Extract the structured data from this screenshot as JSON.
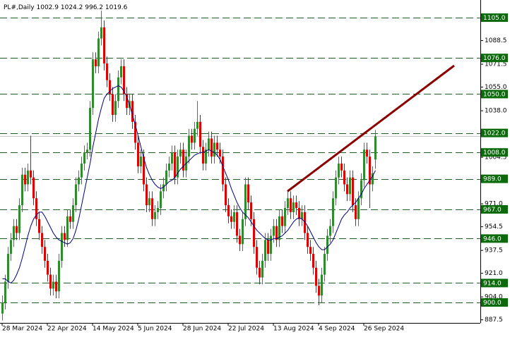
{
  "chart_data": {
    "type": "candlestick",
    "title": "PL#,Daily",
    "categories": [
      "28 Mar 2024",
      null,
      null,
      null,
      null,
      null,
      null,
      null,
      null,
      null,
      null,
      null,
      null,
      null,
      null,
      null,
      "22 Apr 2024",
      null,
      null,
      null,
      null,
      null,
      null,
      null,
      null,
      null,
      null,
      null,
      null,
      null,
      null,
      null,
      "14 May 2024",
      null,
      null,
      null,
      null,
      null,
      null,
      null,
      null,
      null,
      null,
      null,
      null,
      null,
      null,
      null,
      "5 Jun 2024",
      null,
      null,
      null,
      null,
      null,
      null,
      null,
      null,
      null,
      null,
      null,
      null,
      null,
      null,
      null,
      "28 Jun 2024",
      null,
      null,
      null,
      null,
      null,
      null,
      null,
      null,
      null,
      null,
      null,
      null,
      null,
      null,
      null,
      "22 Jul 2024",
      null,
      null,
      null,
      null,
      null,
      null,
      null,
      null,
      null,
      null,
      null,
      null,
      null,
      null,
      null,
      "13 Aug 2024",
      null,
      null,
      null,
      null,
      null,
      null,
      null,
      null,
      null,
      null,
      null,
      null,
      null,
      null,
      null,
      "4 Sep 2024",
      null,
      null,
      null,
      null,
      null,
      null,
      null,
      null,
      null,
      null,
      null,
      null,
      null,
      null,
      null,
      "26 Sep 2024",
      null,
      null,
      null,
      null
    ],
    "open": [
      892,
      900,
      915,
      935,
      945,
      955,
      950,
      970,
      992,
      985,
      995,
      990,
      975,
      960,
      950,
      940,
      930,
      920,
      910,
      915,
      908,
      930,
      950,
      945,
      962,
      958,
      970,
      985,
      990,
      1000,
      1008,
      1010,
      1040,
      1075,
      1070,
      1090,
      1098,
      1072,
      1060,
      1050,
      1035,
      1045,
      1062,
      1070,
      1050,
      1040,
      1045,
      1030,
      1015,
      998,
      1005,
      985,
      970,
      975,
      960,
      965,
      968,
      980,
      985,
      995,
      1000,
      1008,
      990,
      1005,
      1010,
      995,
      1005,
      1020,
      1015,
      1025,
      1030,
      1012,
      1000,
      1010,
      1018,
      1005,
      1015,
      1010,
      1005,
      985,
      970,
      962,
      958,
      965,
      948,
      942,
      960,
      985,
      972,
      960,
      940,
      925,
      918,
      930,
      945,
      935,
      948,
      955,
      945,
      962,
      955,
      968,
      975,
      965,
      972,
      968,
      960,
      965,
      950,
      940,
      935,
      925,
      912,
      905,
      920,
      935,
      948,
      955,
      975,
      990,
      1000,
      995,
      985,
      978,
      990,
      970,
      960,
      975,
      988,
      1010,
      1005,
      985,
      1002.9
    ],
    "high": [
      905,
      920,
      940,
      950,
      960,
      960,
      975,
      997,
      997,
      1000,
      1020,
      995,
      980,
      965,
      955,
      945,
      935,
      925,
      920,
      920,
      935,
      955,
      955,
      967,
      967,
      975,
      990,
      995,
      1005,
      1013,
      1015,
      1045,
      1080,
      1080,
      1095,
      1110,
      1103,
      1077,
      1065,
      1055,
      1050,
      1067,
      1075,
      1075,
      1055,
      1050,
      1050,
      1035,
      1020,
      1010,
      1010,
      990,
      980,
      980,
      970,
      973,
      985,
      990,
      1000,
      1005,
      1013,
      1013,
      1010,
      1015,
      1015,
      1010,
      1025,
      1025,
      1030,
      1045,
      1035,
      1017,
      1015,
      1023,
      1023,
      1020,
      1020,
      1015,
      1010,
      990,
      975,
      967,
      970,
      970,
      953,
      965,
      990,
      990,
      977,
      965,
      945,
      930,
      935,
      950,
      950,
      953,
      960,
      960,
      967,
      967,
      973,
      980,
      980,
      977,
      977,
      973,
      970,
      970,
      955,
      945,
      940,
      930,
      917,
      925,
      940,
      953,
      960,
      980,
      995,
      1005,
      1005,
      1000,
      990,
      995,
      995,
      975,
      980,
      993,
      1015,
      1015,
      1010,
      998,
      1024.2
    ],
    "low": [
      887,
      895,
      910,
      930,
      940,
      945,
      945,
      965,
      980,
      980,
      985,
      970,
      955,
      945,
      935,
      925,
      915,
      905,
      905,
      903,
      903,
      925,
      940,
      940,
      953,
      953,
      965,
      980,
      985,
      995,
      1003,
      1005,
      1035,
      1065,
      1065,
      1085,
      1067,
      1055,
      1045,
      1030,
      1030,
      1040,
      1057,
      1045,
      1035,
      1035,
      1025,
      1010,
      993,
      993,
      980,
      965,
      965,
      955,
      955,
      960,
      963,
      975,
      980,
      990,
      995,
      985,
      985,
      1000,
      990,
      990,
      1000,
      1010,
      1010,
      1020,
      1007,
      995,
      995,
      1005,
      1000,
      1000,
      1005,
      1000,
      980,
      965,
      957,
      953,
      953,
      943,
      937,
      937,
      955,
      967,
      955,
      935,
      920,
      913,
      913,
      925,
      930,
      930,
      943,
      940,
      940,
      950,
      950,
      963,
      960,
      960,
      963,
      955,
      955,
      945,
      935,
      930,
      920,
      907,
      898,
      900,
      915,
      930,
      943,
      950,
      970,
      985,
      990,
      980,
      973,
      973,
      965,
      955,
      955,
      970,
      983,
      1000,
      968,
      980,
      996.2
    ],
    "close": [
      900,
      915,
      935,
      945,
      955,
      950,
      970,
      992,
      985,
      995,
      990,
      975,
      960,
      950,
      940,
      930,
      920,
      910,
      915,
      908,
      930,
      950,
      945,
      962,
      958,
      970,
      985,
      990,
      1000,
      1008,
      1010,
      1040,
      1075,
      1070,
      1090,
      1098,
      1072,
      1060,
      1050,
      1035,
      1045,
      1062,
      1070,
      1050,
      1040,
      1045,
      1030,
      1015,
      998,
      1005,
      985,
      970,
      975,
      960,
      965,
      968,
      980,
      985,
      995,
      1000,
      1008,
      990,
      1005,
      1010,
      995,
      1005,
      1020,
      1015,
      1025,
      1030,
      1012,
      1000,
      1010,
      1018,
      1005,
      1015,
      1010,
      1005,
      985,
      970,
      962,
      958,
      965,
      948,
      942,
      960,
      985,
      972,
      960,
      940,
      925,
      918,
      930,
      945,
      935,
      948,
      955,
      945,
      962,
      955,
      968,
      975,
      965,
      972,
      968,
      960,
      965,
      950,
      940,
      935,
      925,
      912,
      905,
      920,
      935,
      948,
      955,
      975,
      990,
      1000,
      995,
      985,
      978,
      990,
      970,
      960,
      975,
      988,
      1010,
      1005,
      985,
      993,
      1019.6
    ],
    "up_color": "#2e8b2e",
    "down_color": "#e00000",
    "ma": {
      "color": "#000080",
      "values": [
        917,
        917,
        915,
        914,
        916,
        920,
        925,
        932,
        940,
        948,
        955,
        960,
        963,
        965,
        965,
        962,
        958,
        954,
        950,
        947,
        945,
        944,
        943,
        942,
        943,
        946,
        952,
        960,
        970,
        980,
        990,
        1000,
        1012,
        1022,
        1032,
        1040,
        1047,
        1050,
        1052,
        1054,
        1055,
        1056,
        1055,
        1052,
        1048,
        1042,
        1035,
        1028,
        1020,
        1012,
        1004,
        997,
        992,
        988,
        985,
        983,
        982,
        983,
        985,
        987,
        988,
        990,
        993,
        996,
        998,
        1000,
        1002,
        1004,
        1006,
        1007,
        1008,
        1008,
        1009,
        1010,
        1009,
        1008,
        1006,
        1003,
        998,
        993,
        988,
        982,
        977,
        972,
        968,
        965,
        963,
        961,
        958,
        955,
        952,
        950,
        948,
        946,
        945,
        945,
        946,
        946,
        947,
        948,
        950,
        952,
        955,
        958,
        960,
        961,
        960,
        958,
        955,
        951,
        947,
        943,
        940,
        938,
        938,
        940,
        942,
        945,
        950,
        955,
        960,
        963,
        965,
        968,
        970,
        972,
        975,
        978,
        982,
        985,
        988,
        991,
        995
      ]
    },
    "ylim": [
      885.3,
      1117.7
    ],
    "yticks": [
      887.5,
      {
        "value": 904,
        "label": "904.0"
      },
      {
        "value": 921,
        "label": "921.0"
      },
      937.5,
      954.5,
      {
        "value": 971,
        "label": "971.0"
      },
      1004.5,
      {
        "value": 1038,
        "label": "1038.0"
      },
      {
        "value": 1055,
        "label": "1055.0"
      },
      1071.5,
      1088.5
    ],
    "levels": {
      "color": "#1f5f1f",
      "label_color": "#0b6b0b",
      "values": [
        {
          "value": 1105,
          "label": "1105.0"
        },
        {
          "value": 1076,
          "label": "1076.0"
        },
        {
          "value": 1050,
          "label": "1050.0"
        },
        {
          "value": 1022,
          "label": "1022.0"
        },
        {
          "value": 1008,
          "label": "1008.0"
        },
        {
          "value": 989,
          "label": "989.0"
        },
        {
          "value": 967,
          "label": "967.0"
        },
        {
          "value": 946,
          "label": "946.0"
        },
        {
          "value": 914,
          "label": "914.0"
        },
        {
          "value": 900,
          "label": "900.0"
        }
      ]
    },
    "trendline": {
      "color": "#8b0000",
      "start_index": 101,
      "start_value": 980,
      "end_index": 160,
      "end_value": 1070.5
    }
  }
}
